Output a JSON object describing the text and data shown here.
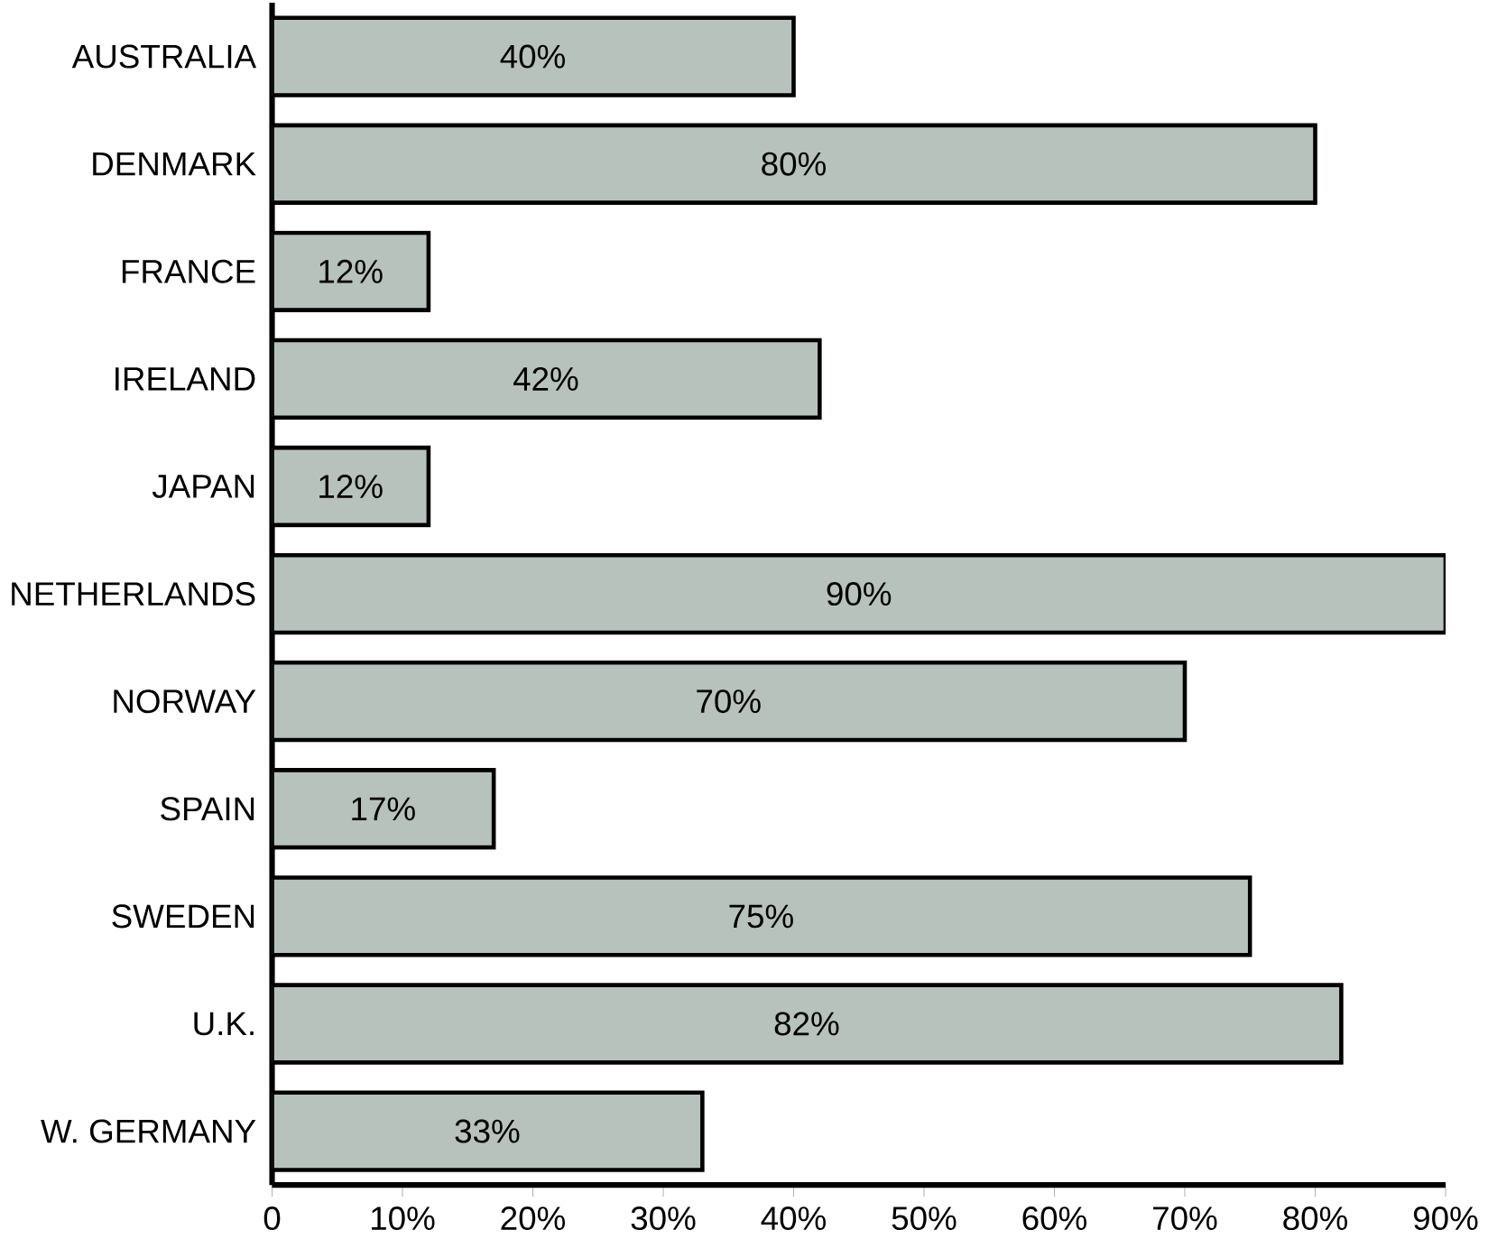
{
  "chart_data": {
    "type": "bar",
    "orientation": "horizontal",
    "categories": [
      "AUSTRALIA",
      "DENMARK",
      "FRANCE",
      "IRELAND",
      "JAPAN",
      "NETHERLANDS",
      "NORWAY",
      "SPAIN",
      "SWEDEN",
      "U.K.",
      "W. GERMANY"
    ],
    "values": [
      40,
      80,
      12,
      42,
      12,
      90,
      70,
      17,
      75,
      82,
      33
    ],
    "value_labels": [
      "40%",
      "80%",
      "12%",
      "42%",
      "12%",
      "90%",
      "70%",
      "17%",
      "75%",
      "82%",
      "33%"
    ],
    "color": "#b8c2bc",
    "xlim": [
      0,
      90
    ],
    "xticks": [
      0,
      {
        "value": 10,
        "label": "10%"
      },
      {
        "value": 20,
        "label": "20%"
      },
      {
        "value": 30,
        "label": "30%"
      },
      {
        "value": 40,
        "label": "40%"
      },
      {
        "value": 50,
        "label": "50%"
      },
      {
        "value": 60,
        "label": "60%"
      },
      {
        "value": 70,
        "label": "70%"
      },
      {
        "value": 80,
        "label": "80%"
      },
      {
        "value": 90,
        "label": "90%"
      }
    ],
    "grid": false
  }
}
